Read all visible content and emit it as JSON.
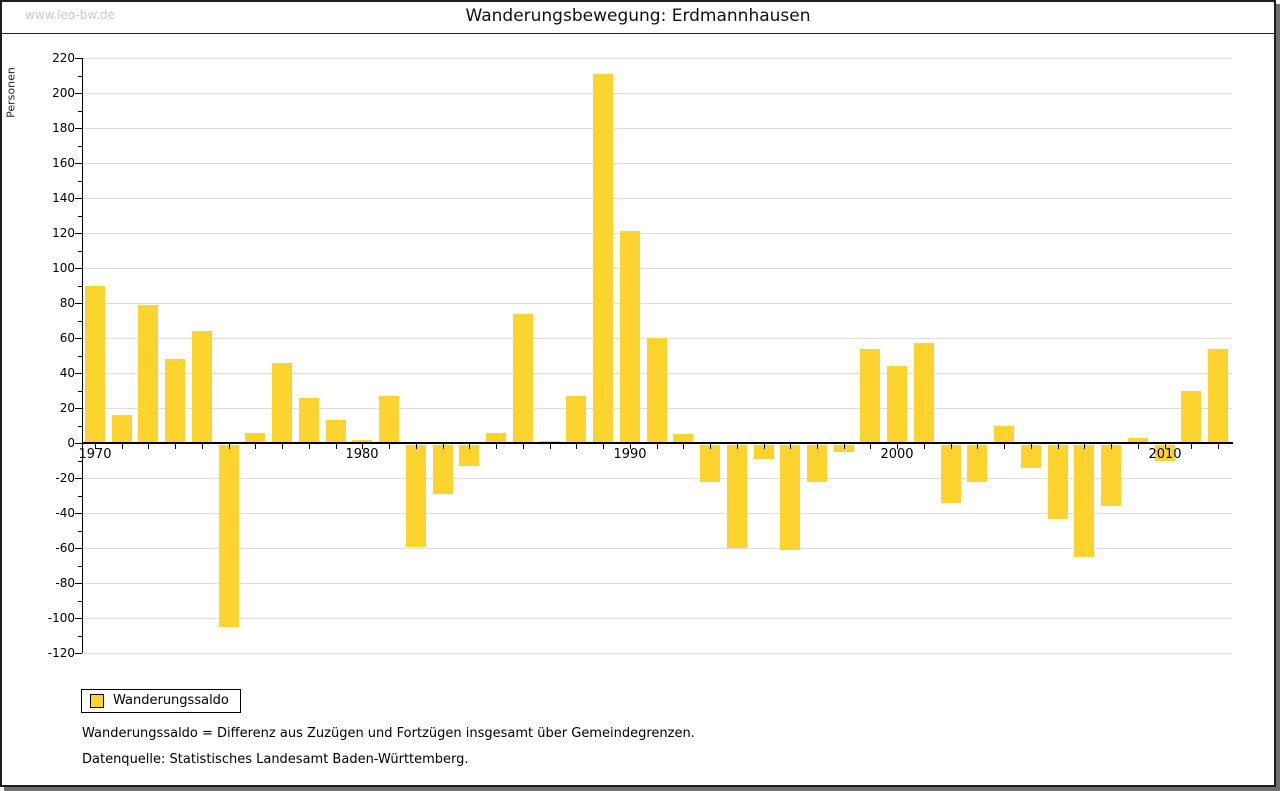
{
  "header": {
    "watermark": "www.leo-bw.de",
    "title": "Wanderungsbewegung: Erdmannhausen"
  },
  "chart_data": {
    "type": "bar",
    "title": "Wanderungsbewegung: Erdmannhausen",
    "xlabel": "",
    "ylabel": "Personen",
    "ylim": [
      -120,
      220
    ],
    "ytick_step": 20,
    "yminor_step": 10,
    "grid": true,
    "legend_position": "bottom-left",
    "xtick_labeled_years": [
      1970,
      1980,
      1990,
      2000,
      2010
    ],
    "series": [
      {
        "name": "Wanderungssaldo",
        "years": [
          1970,
          1971,
          1972,
          1973,
          1974,
          1975,
          1976,
          1977,
          1978,
          1979,
          1980,
          1981,
          1982,
          1983,
          1984,
          1985,
          1986,
          1987,
          1988,
          1989,
          1990,
          1991,
          1992,
          1993,
          1994,
          1995,
          1996,
          1997,
          1998,
          1999,
          2000,
          2001,
          2002,
          2003,
          2004,
          2005,
          2006,
          2007,
          2008,
          2009,
          2010,
          2011,
          2012
        ],
        "values": [
          90,
          16,
          79,
          48,
          64,
          -104,
          6,
          46,
          26,
          13,
          2,
          27,
          -58,
          -28,
          -12,
          6,
          74,
          1,
          27,
          211,
          121,
          60,
          5,
          -21,
          -59,
          -8,
          -60,
          -21,
          -4,
          54,
          44,
          57,
          -33,
          -21,
          10,
          -13,
          -42,
          -64,
          -35,
          3,
          -9,
          30,
          54
        ]
      }
    ]
  },
  "legend": {
    "label": "Wanderungssaldo"
  },
  "footnotes": [
    "Wanderungssaldo = Differenz aus Zuzügen und Fortzügen insgesamt über Gemeindegrenzen.",
    "Datenquelle: Statistisches Landesamt Baden-Württemberg."
  ],
  "colors": {
    "bar": "#FCD32F",
    "grid": "#DCDCDC",
    "axis": "#000000",
    "watermark": "#C9C9C9"
  }
}
